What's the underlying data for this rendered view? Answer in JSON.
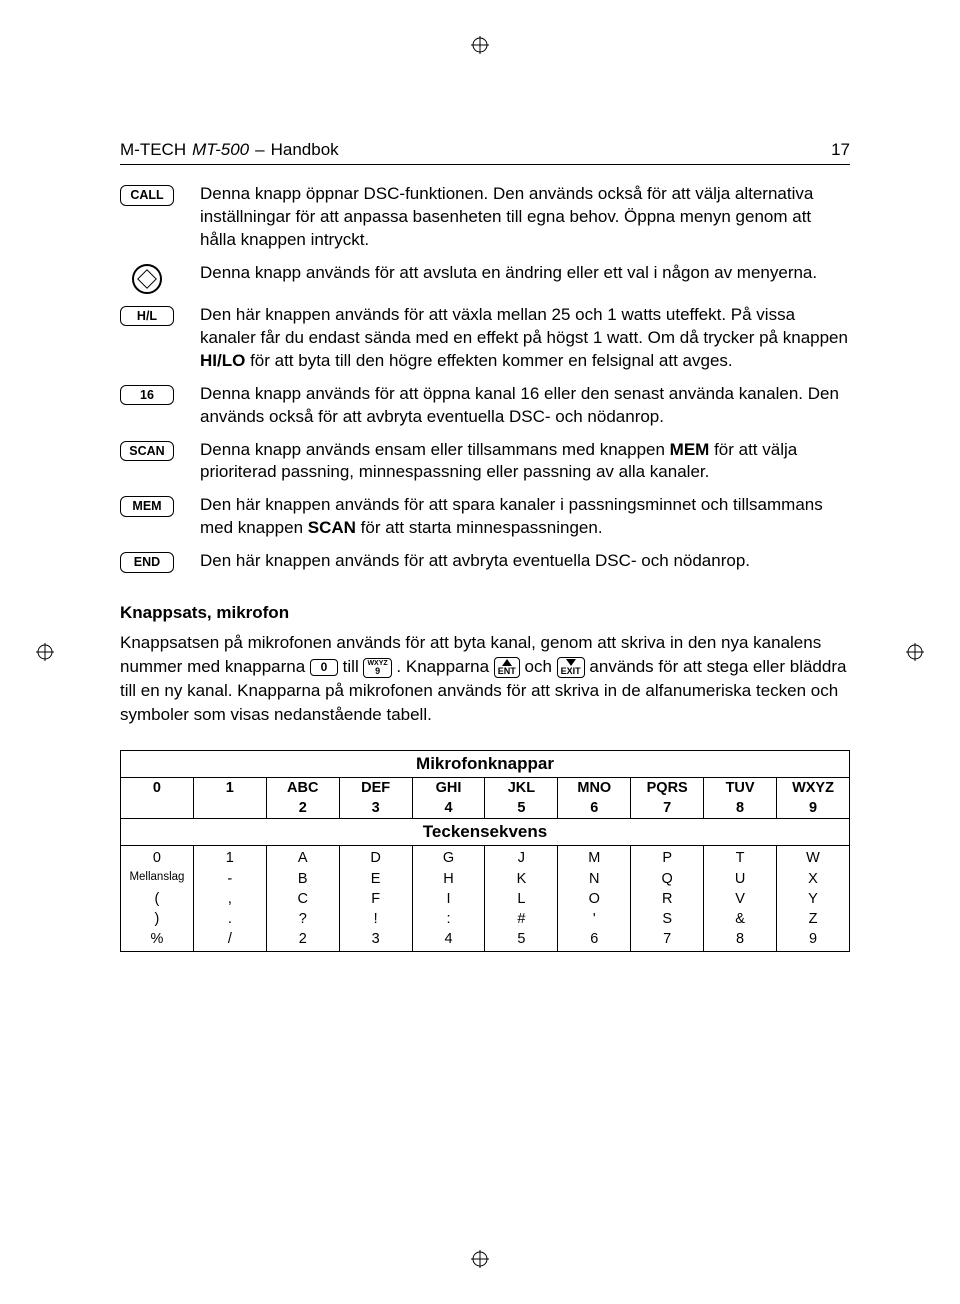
{
  "header": {
    "brand": "M-TECH",
    "model": "MT-500",
    "separator": "–",
    "title": "Handbok",
    "page_number": "17"
  },
  "buttons": [
    {
      "label": "CALL",
      "icon": "box",
      "text": "Denna knapp öppnar DSC-funktionen.   Den används också för att välja alternativa inställningar för att anpassa basenheten till egna behov. Öppna menyn genom att hålla knappen intryckt."
    },
    {
      "label": "",
      "icon": "dial",
      "text": "Denna knapp används för att avsluta en ändring eller ett val i någon av menyerna."
    },
    {
      "label": "H/L",
      "icon": "box",
      "text_html": "Den här knappen används för att växla mellan 25 och 1 watts uteffekt. På vissa kanaler får du endast sända med en effekt på högst 1 watt. Om då trycker på knappen <b>HI/LO</b> för att byta till den högre effekten kommer en felsignal att avges."
    },
    {
      "label": "16",
      "icon": "box",
      "text": "Denna knapp används för att öppna kanal 16 eller den senast använda kanalen. Den används också för att avbryta eventuella DSC- och nödanrop."
    },
    {
      "label": "SCAN",
      "icon": "box",
      "text_html": "Denna knapp används ensam eller tillsammans med knappen <b>MEM</b> för att välja prioriterad passning, minnespassning eller passning av alla kanaler."
    },
    {
      "label": "MEM",
      "icon": "box",
      "text_html": "Den här knappen används för att spara kanaler i passningsminnet och tillsammans med knappen <b>SCAN</b> för att starta minnespassningen."
    },
    {
      "label": "END",
      "icon": "box",
      "text": "Den här knappen används för att avbryta eventuella DSC- och nödanrop."
    }
  ],
  "section": {
    "title": "Knappsats, mikrofon",
    "para_parts": {
      "p1a": "Knappsatsen på mikrofonen används för att byta kanal, genom att skriva in den nya kanalens nummer med knapparna ",
      "key_0": "0",
      "p1b": " till ",
      "key_9_top": "WXYZ",
      "key_9_bot": "9",
      "p1c": ". Knapparna ",
      "key_ent": "ENT",
      "p1d": " och ",
      "key_exit": "EXIT",
      "p1e": " används för att stega eller bläddra till en ny kanal. Knapparna på mikrofonen används för att skriva in de alfanumeriska tecken och symboler som visas nedanstående tabell."
    }
  },
  "table": {
    "title1": "Mikrofonknappar",
    "head_row": [
      "0",
      "1",
      "ABC",
      "DEF",
      "GHI",
      "JKL",
      "MNO",
      "PQRS",
      "TUV",
      "WXYZ"
    ],
    "num_row": [
      "",
      "",
      "2",
      "3",
      "4",
      "5",
      "6",
      "7",
      "8",
      "9"
    ],
    "title2": "Teckensekvens",
    "seq_rows": [
      [
        "0",
        "1",
        "A",
        "D",
        "G",
        "J",
        "M",
        "P",
        "T",
        "W"
      ],
      [
        "Mellanslag",
        "-",
        "B",
        "E",
        "H",
        "K",
        "N",
        "Q",
        "U",
        "X"
      ],
      [
        "(",
        ",",
        "C",
        "F",
        "I",
        "L",
        "O",
        "R",
        "V",
        "Y"
      ],
      [
        ")",
        ".",
        "?",
        "!",
        ":",
        "#",
        "'",
        "S",
        "&",
        "Z"
      ],
      [
        "%",
        "/",
        "2",
        "3",
        "4",
        "5",
        "6",
        "7",
        "8",
        "9"
      ]
    ]
  }
}
